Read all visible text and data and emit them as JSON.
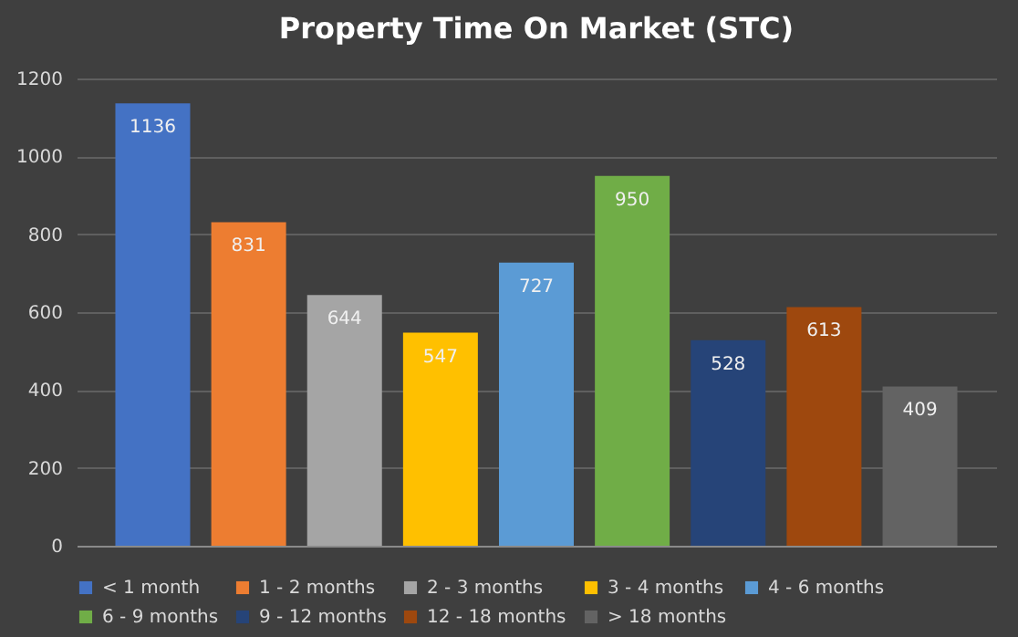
{
  "chart_data": {
    "type": "bar",
    "title": "Property Time On Market (STC)",
    "categories": [
      null
    ],
    "series": [
      {
        "name": "< 1 month",
        "color": "#4472c4",
        "values": [
          1136
        ]
      },
      {
        "name": "1 - 2 months",
        "color": "#ed7d31",
        "values": [
          831
        ]
      },
      {
        "name": "2 - 3 months",
        "color": "#a5a5a5",
        "values": [
          644
        ]
      },
      {
        "name": "3 - 4 months",
        "color": "#ffc000",
        "values": [
          547
        ]
      },
      {
        "name": "4 - 6 months",
        "color": "#5b9bd5",
        "values": [
          727
        ]
      },
      {
        "name": "6 - 9 months",
        "color": "#70ad47",
        "values": [
          950
        ]
      },
      {
        "name": "9 - 12 months",
        "color": "#264478",
        "values": [
          528
        ]
      },
      {
        "name": "12 - 18 months",
        "color": "#9e480e",
        "values": [
          613
        ]
      },
      {
        "name": "> 18 months",
        "color": "#636363",
        "values": [
          409
        ]
      }
    ],
    "ylim": [
      0,
      1200
    ],
    "yticks": [
      0,
      200,
      400,
      600,
      800,
      1000,
      1200
    ],
    "grid": "y",
    "legend": "bottom",
    "tick_labels": "y",
    "data_labels": true
  }
}
